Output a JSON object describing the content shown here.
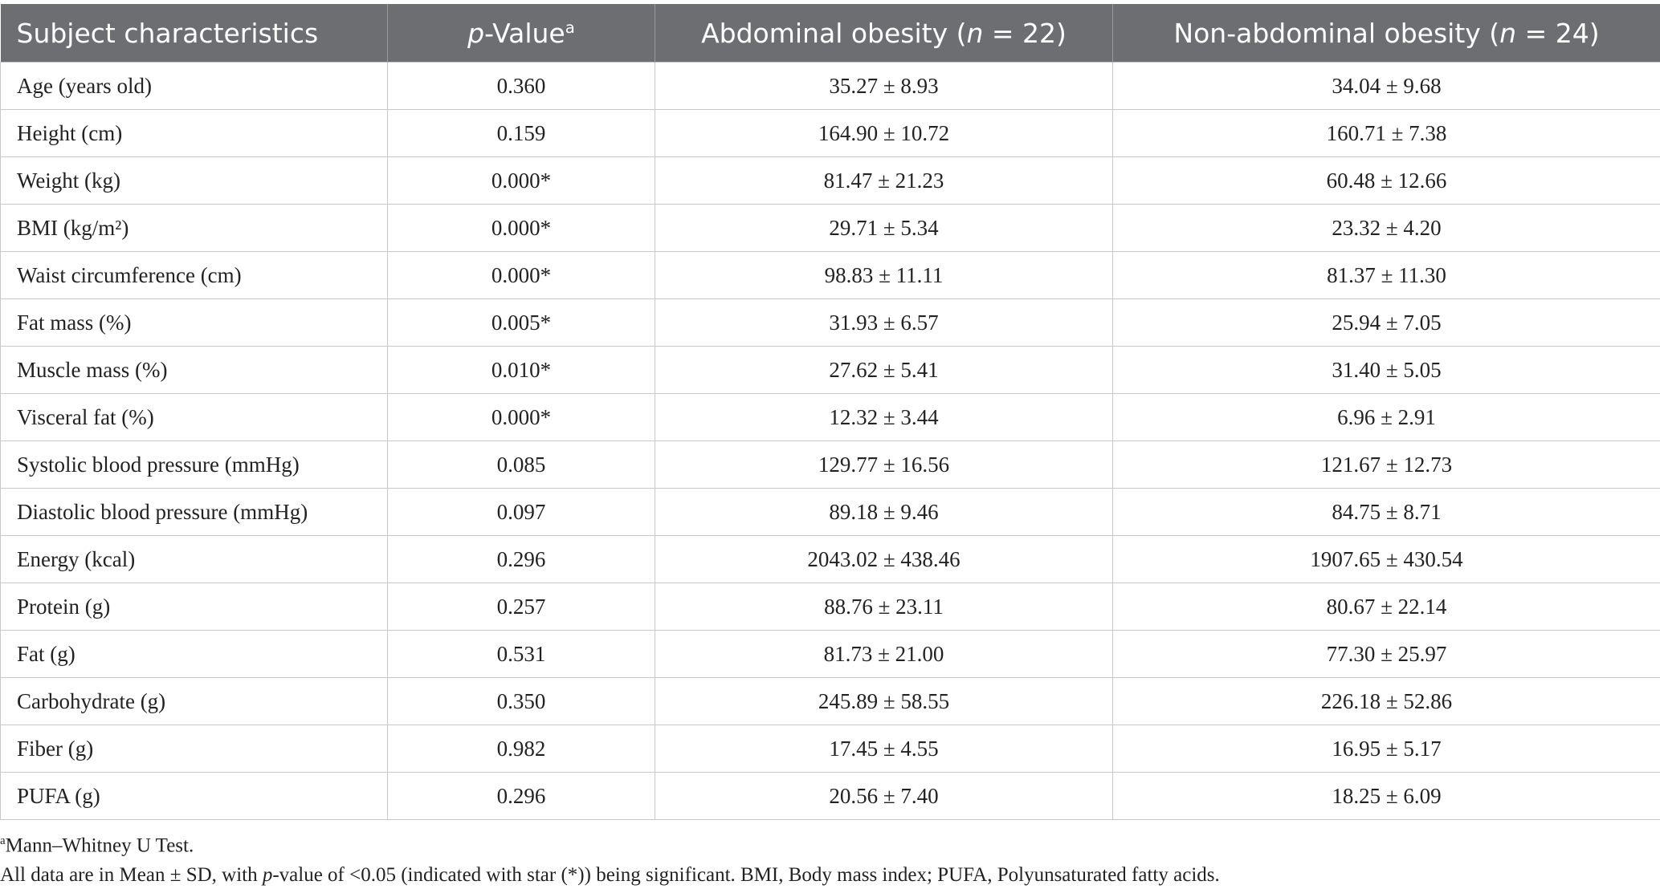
{
  "table": {
    "header": [
      [
        {
          "text": "Subject characteristics"
        }
      ],
      [
        {
          "text": "p",
          "italic": true
        },
        {
          "text": "-Value"
        },
        {
          "text": "a",
          "sup": true
        }
      ],
      [
        {
          "text": "Abdominal obesity ("
        },
        {
          "text": "n",
          "italic": true
        },
        {
          "text": " = 22)"
        }
      ],
      [
        {
          "text": "Non-abdominal obesity ("
        },
        {
          "text": "n",
          "italic": true
        },
        {
          "text": " = 24)"
        }
      ]
    ],
    "rows": [
      [
        "Age (years old)",
        "0.360",
        "35.27 ± 8.93",
        "34.04 ± 9.68"
      ],
      [
        "Height (cm)",
        "0.159",
        "164.90 ± 10.72",
        "160.71 ± 7.38"
      ],
      [
        "Weight (kg)",
        "0.000*",
        "81.47 ± 21.23",
        "60.48 ± 12.66"
      ],
      [
        "BMI (kg/m²)",
        "0.000*",
        "29.71 ± 5.34",
        "23.32 ± 4.20"
      ],
      [
        "Waist circumference (cm)",
        "0.000*",
        "98.83 ± 11.11",
        "81.37 ± 11.30"
      ],
      [
        "Fat mass (%)",
        "0.005*",
        "31.93 ± 6.57",
        "25.94 ± 7.05"
      ],
      [
        "Muscle mass (%)",
        "0.010*",
        "27.62 ± 5.41",
        "31.40 ± 5.05"
      ],
      [
        "Visceral fat (%)",
        "0.000*",
        "12.32 ± 3.44",
        "6.96 ± 2.91"
      ],
      [
        "Systolic blood pressure (mmHg)",
        "0.085",
        "129.77 ± 16.56",
        "121.67 ± 12.73"
      ],
      [
        "Diastolic blood pressure (mmHg)",
        "0.097",
        "89.18 ± 9.46",
        "84.75 ± 8.71"
      ],
      [
        "Energy (kcal)",
        "0.296",
        "2043.02 ± 438.46",
        "1907.65 ± 430.54"
      ],
      [
        "Protein (g)",
        "0.257",
        "88.76 ± 23.11",
        "80.67 ± 22.14"
      ],
      [
        "Fat (g)",
        "0.531",
        "81.73 ± 21.00",
        "77.30 ± 25.97"
      ],
      [
        "Carbohydrate (g)",
        "0.350",
        "245.89 ± 58.55",
        "226.18 ± 52.86"
      ],
      [
        "Fiber (g)",
        "0.982",
        "17.45 ± 4.55",
        "16.95 ± 5.17"
      ],
      [
        "PUFA (g)",
        "0.296",
        "20.56 ± 7.40",
        "18.25 ± 6.09"
      ]
    ]
  },
  "footnotes": [
    [
      {
        "text": "a",
        "sup": true
      },
      {
        "text": "Mann–Whitney U Test."
      }
    ],
    [
      {
        "text": "All data are in Mean ± SD, with "
      },
      {
        "text": "p",
        "italic": true
      },
      {
        "text": "-value of <0.05 (indicated with star (*)) being significant. BMI, Body mass index; PUFA, Polyunsaturated fatty acids."
      }
    ]
  ]
}
